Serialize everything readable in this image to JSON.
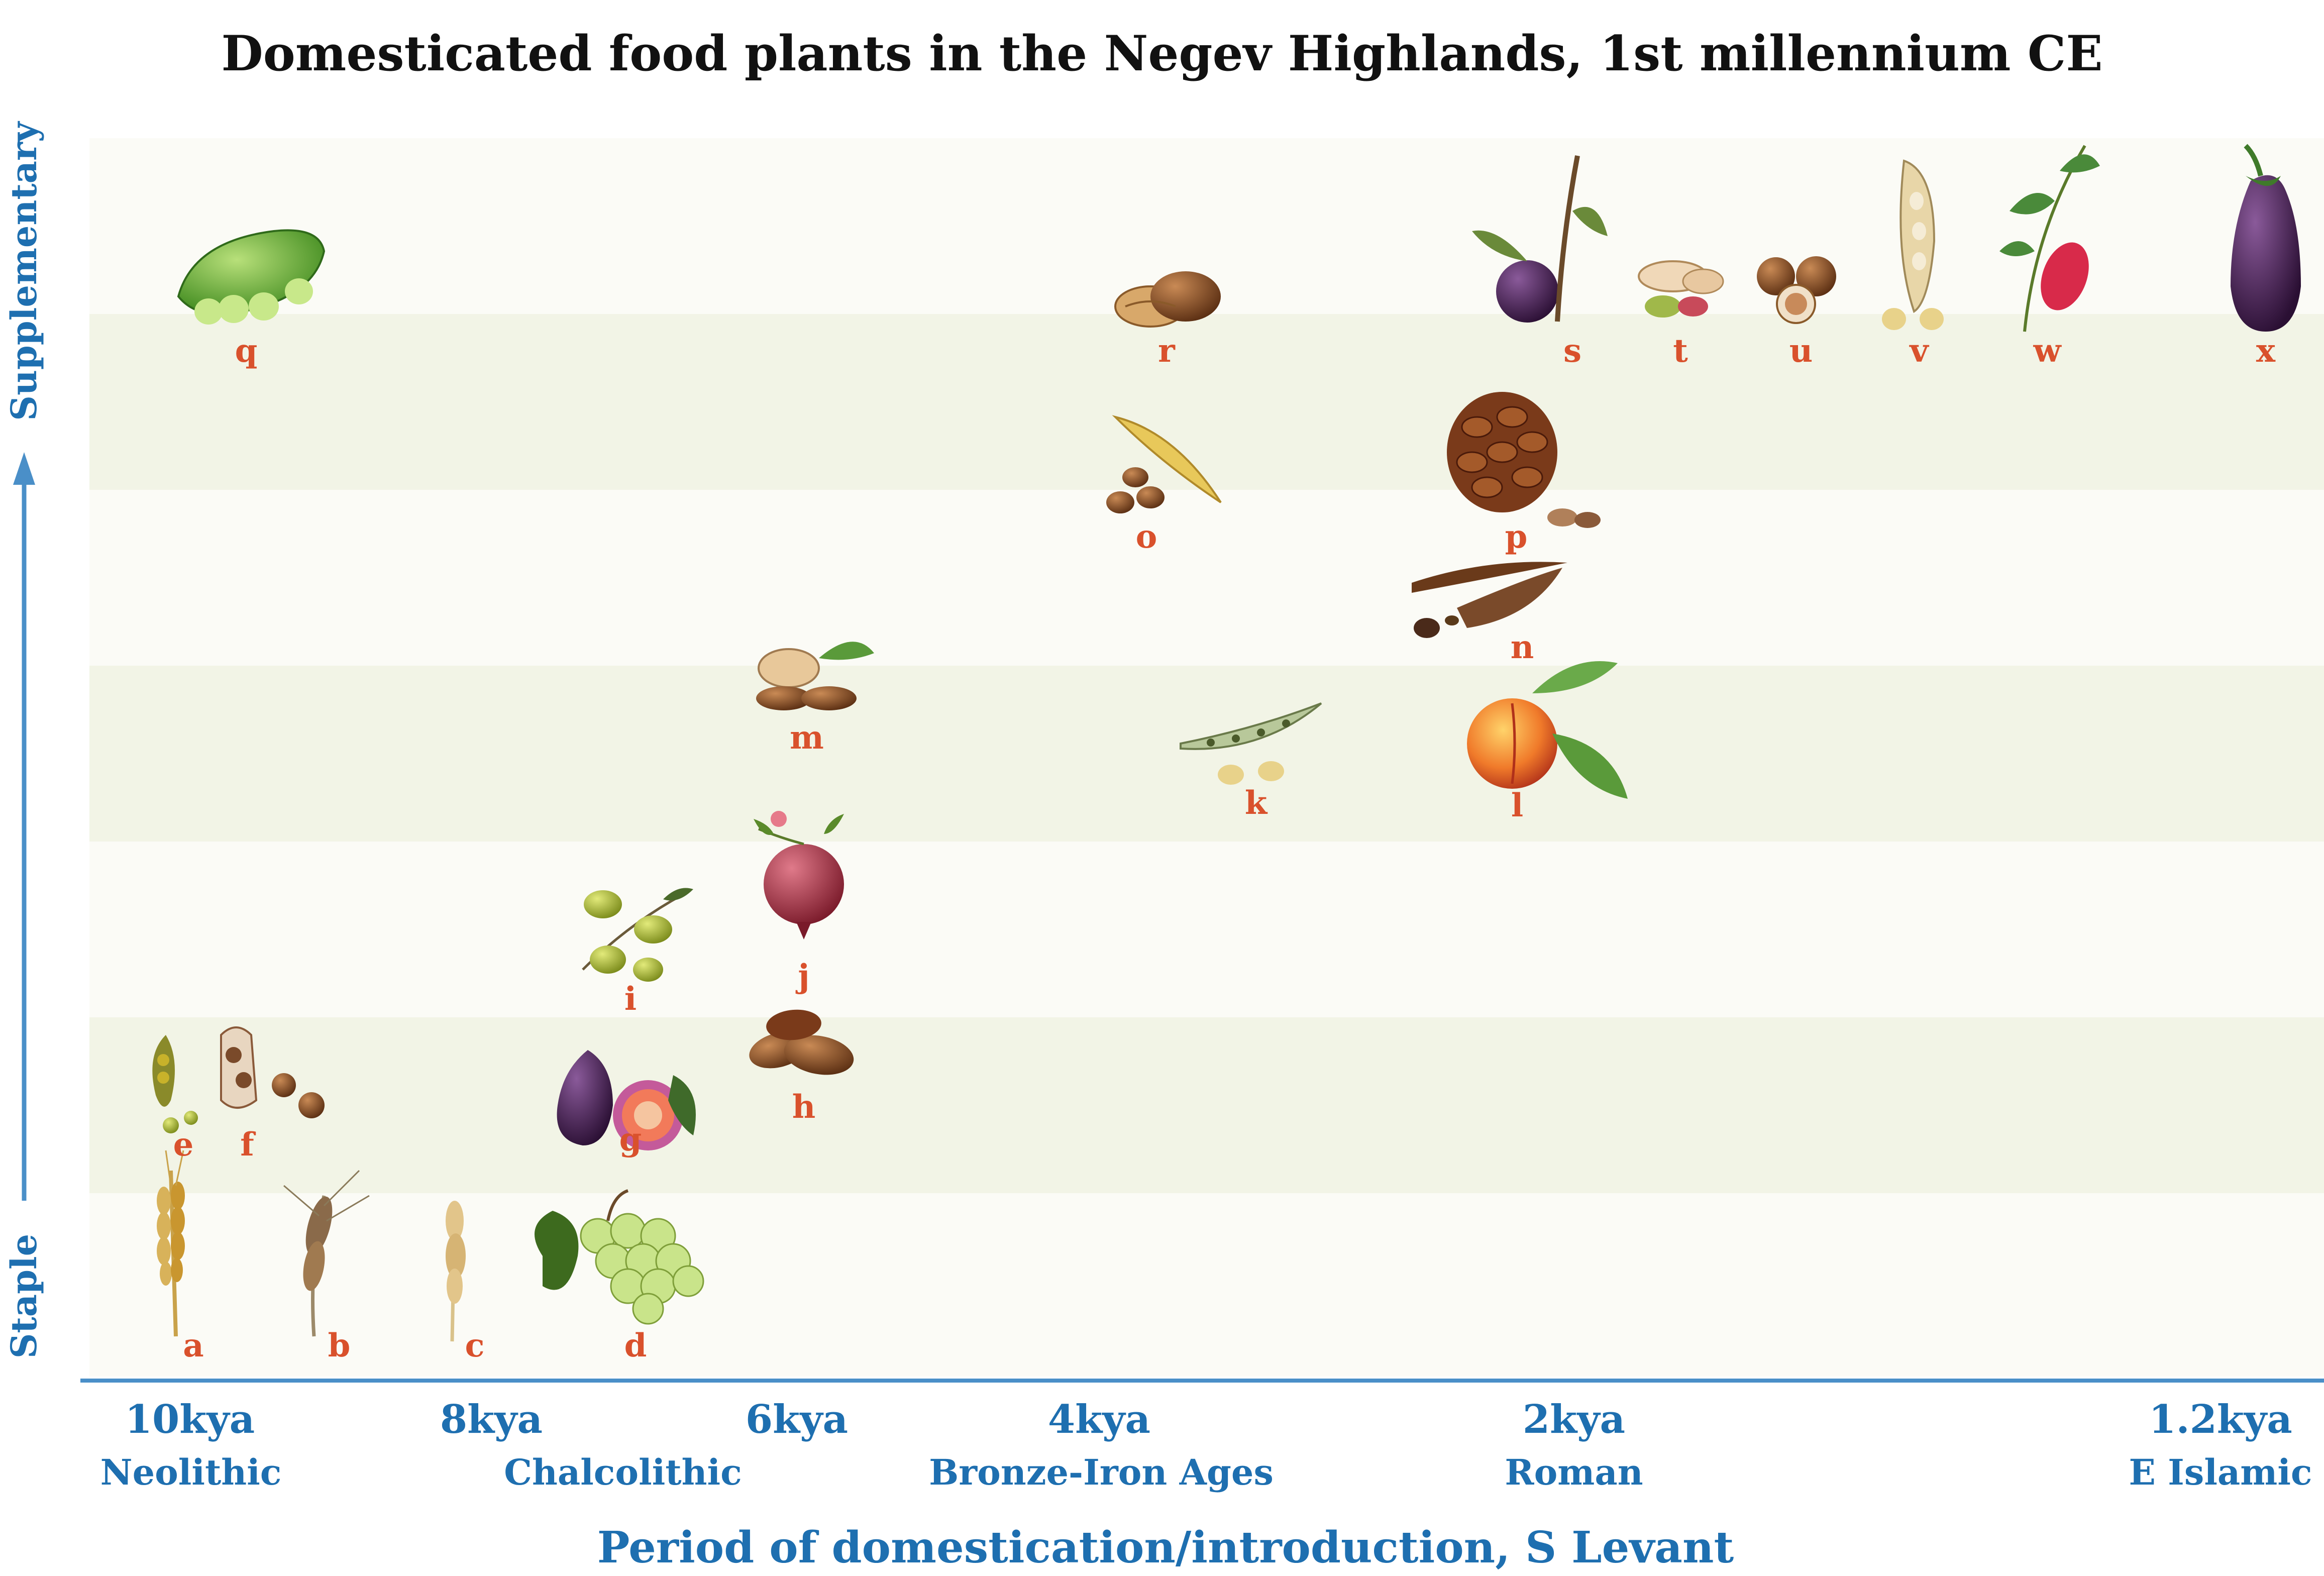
{
  "title": "Domesticated food plants in the Negev Highlands, 1st millennium CE",
  "y_axis": {
    "top_label": "Supplementary",
    "bottom_label": "Staple"
  },
  "x_axis": {
    "label": "Period of domestication/introduction, S Levant",
    "ticks": [
      {
        "year": "10kya",
        "era": "Neolithic"
      },
      {
        "year": "8kya",
        "era": "Chalcolithic"
      },
      {
        "year": "6kya",
        "era": ""
      },
      {
        "year": "4kya",
        "era": "Bronze-Iron Ages"
      },
      {
        "year": "2kya",
        "era": "Roman"
      },
      {
        "year": "1.2kya",
        "era": "E Islamic"
      }
    ]
  },
  "colors": {
    "axis": "#1e6fb0",
    "letters": "#d9512c",
    "band_light": "#fbfbf6",
    "band_dark": "#f2f4e6"
  },
  "plants": [
    {
      "letter": "a",
      "icon": "wheat-ear-icon"
    },
    {
      "letter": "b",
      "icon": "barley-ear-icon"
    },
    {
      "letter": "c",
      "icon": "einkorn-ear-icon"
    },
    {
      "letter": "d",
      "icon": "grape-bunch-icon"
    },
    {
      "letter": "e",
      "icon": "pea-pod-icon"
    },
    {
      "letter": "f",
      "icon": "chickpea-pod-icon"
    },
    {
      "letter": "g",
      "icon": "fig-icon"
    },
    {
      "letter": "h",
      "icon": "date-fruit-icon"
    },
    {
      "letter": "i",
      "icon": "olive-branch-icon"
    },
    {
      "letter": "j",
      "icon": "pomegranate-icon"
    },
    {
      "letter": "k",
      "icon": "bean-pod-icon"
    },
    {
      "letter": "l",
      "icon": "peach-icon"
    },
    {
      "letter": "m",
      "icon": "almond-icon"
    },
    {
      "letter": "n",
      "icon": "carob-pod-icon"
    },
    {
      "letter": "o",
      "icon": "yellow-pod-icon"
    },
    {
      "letter": "p",
      "icon": "pine-cone-icon"
    },
    {
      "letter": "q",
      "icon": "green-pod-icon"
    },
    {
      "letter": "r",
      "icon": "walnut-icon"
    },
    {
      "letter": "s",
      "icon": "plum-icon"
    },
    {
      "letter": "t",
      "icon": "pistachio-icon"
    },
    {
      "letter": "u",
      "icon": "hazelnut-icon"
    },
    {
      "letter": "v",
      "icon": "cowpea-pod-icon"
    },
    {
      "letter": "w",
      "icon": "jujube-icon"
    },
    {
      "letter": "x",
      "icon": "eggplant-icon"
    }
  ]
}
